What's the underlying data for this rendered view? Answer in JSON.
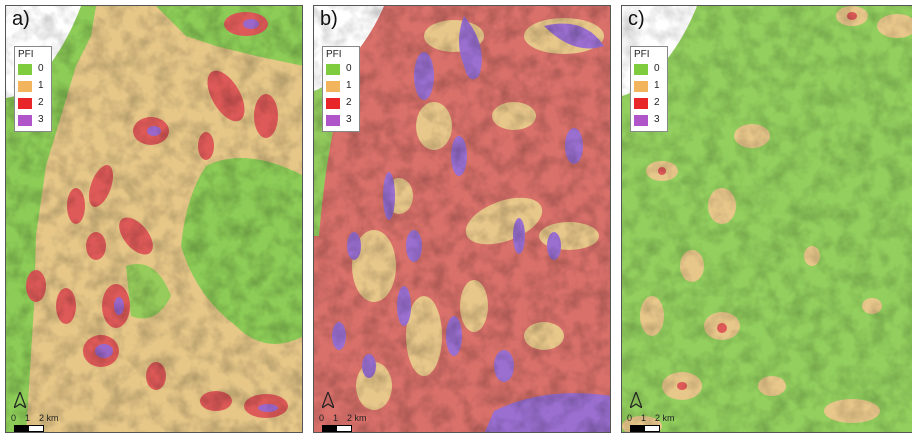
{
  "legend": {
    "title": "PFI",
    "classes": [
      {
        "label": "0",
        "color": "#7fcd3e"
      },
      {
        "label": "1",
        "color": "#f2b55e"
      },
      {
        "label": "2",
        "color": "#e8262a"
      },
      {
        "label": "3",
        "color": "#b055c9"
      }
    ]
  },
  "scalebar": {
    "tick0": "0",
    "tick1": "1",
    "tick2": "2 km"
  },
  "north_arrow": "north-arrow-icon",
  "panels": [
    {
      "label": "a)",
      "base": "#e6c788",
      "pattern": "mixed-low"
    },
    {
      "label": "b)",
      "base": "#d8746a",
      "pattern": "high"
    },
    {
      "label": "c)",
      "base": "#92cf5e",
      "pattern": "low"
    }
  ],
  "colors": {
    "outside": "#ffffff",
    "hillshade": "#000000"
  }
}
